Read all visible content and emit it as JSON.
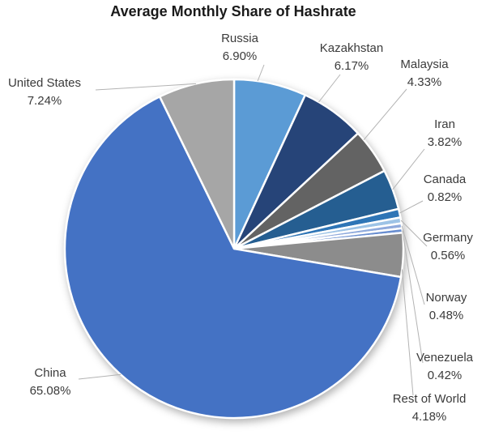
{
  "chart_data": {
    "type": "pie",
    "title": "Average Monthly Share of Hashrate",
    "legend_position": "none",
    "direction": "clockwise",
    "start_angle_deg": 0,
    "slices": [
      {
        "label": "Russia",
        "value": 6.9,
        "display": "6.90%",
        "color": "#5B9BD5"
      },
      {
        "label": "Kazakhstan",
        "value": 6.17,
        "display": "6.17%",
        "color": "#264478"
      },
      {
        "label": "Malaysia",
        "value": 4.33,
        "display": "4.33%",
        "color": "#636363"
      },
      {
        "label": "Iran",
        "value": 3.82,
        "display": "3.82%",
        "color": "#255E91"
      },
      {
        "label": "Canada",
        "value": 0.82,
        "display": "0.82%",
        "color": "#2E75B6"
      },
      {
        "label": "Germany",
        "value": 0.56,
        "display": "0.56%",
        "color": "#9DC3E6"
      },
      {
        "label": "Norway",
        "value": 0.48,
        "display": "0.48%",
        "color": "#8FAADC"
      },
      {
        "label": "Venezuela",
        "value": 0.42,
        "display": "0.42%",
        "color": "#698ED0"
      },
      {
        "label": "Rest of World",
        "value": 4.18,
        "display": "4.18%",
        "color": "#8C8C8C"
      },
      {
        "label": "China",
        "value": 65.08,
        "display": "65.08%",
        "color": "#4472C4"
      },
      {
        "label": "United States",
        "value": 7.24,
        "display": "7.24%",
        "color": "#A6A6A6"
      }
    ]
  }
}
